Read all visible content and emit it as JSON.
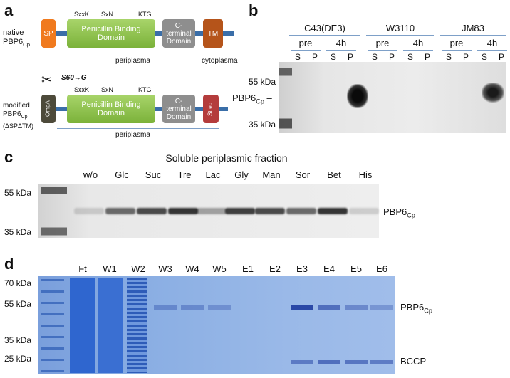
{
  "panels": {
    "a": "a",
    "b": "b",
    "c": "c",
    "d": "d"
  },
  "panel_a": {
    "native_label_1": "native",
    "native_label_2": "PBP6",
    "native_sub": "Cp",
    "modified_label_1": "modified",
    "modified_label_2": "PBP6",
    "modified_sub": "Cp",
    "modified_label_3": "(ΔSPΔTM)",
    "motifs": [
      "SxxK",
      "SxN",
      "KTG"
    ],
    "native_domains": {
      "sp": "SP",
      "pbd": "Penicillin Binding Domain",
      "cterm": "C-terminal Domain",
      "tm": "TM"
    },
    "modified_domains": {
      "ompa": "OmpA",
      "pbd": "Penicillin Binding Domain",
      "cterm": "C-terminal Domain",
      "strep": "Strep"
    },
    "mutation": "S60→G",
    "periplasma": "periplasma",
    "cytoplasma": "cytoplasma",
    "colors": {
      "sp": "#f07a1e",
      "pbd": "#8cc04a",
      "cterm": "#8e8e8e",
      "tm": "#b5541a",
      "ompa": "#4d4a3a",
      "strep": "#b43c3c",
      "backbone": "#3a6ea8"
    }
  },
  "panel_b": {
    "strains": [
      "C43(DE3)",
      "W3110",
      "JM83"
    ],
    "times": [
      "pre",
      "4h"
    ],
    "fractions": [
      "S",
      "P"
    ],
    "mw": [
      "55 kDa",
      "35 kDa"
    ],
    "band_label": "PBP6",
    "band_sub": "Cp"
  },
  "panel_c": {
    "title": "Soluble periplasmic fraction",
    "lanes": [
      "w/o",
      "Glc",
      "Suc",
      "Tre",
      "Lac",
      "Gly",
      "Man",
      "Sor",
      "Bet",
      "His"
    ],
    "mw": [
      "55 kDa",
      "35 kDa"
    ],
    "band_label": "PBP6",
    "band_sub": "Cp"
  },
  "panel_d": {
    "lanes": [
      "Ft",
      "W1",
      "W2",
      "W3",
      "W4",
      "W5",
      "E1",
      "E2",
      "E3",
      "E4",
      "E5",
      "E6"
    ],
    "mw": [
      "70 kDa",
      "55 kDa",
      "35 kDa",
      "25 kDa"
    ],
    "band_label": "PBP6",
    "band_sub": "Cp",
    "bccp_label": "BCCP"
  }
}
